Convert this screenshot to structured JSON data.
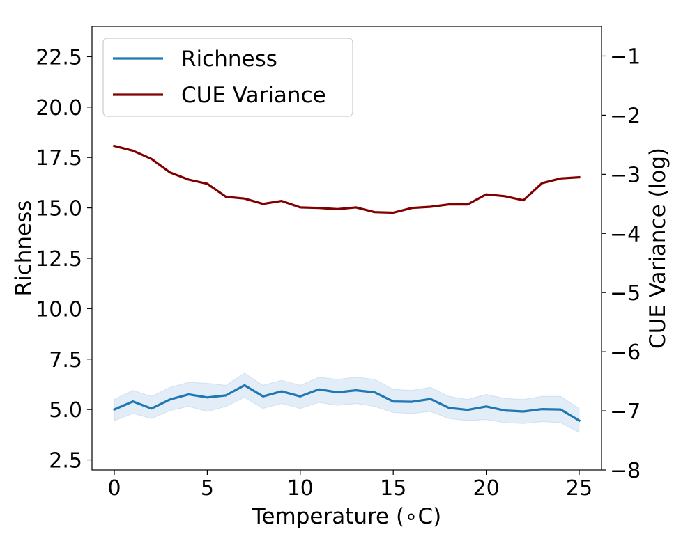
{
  "chart_data": {
    "type": "line",
    "xlabel": "Temperature ($^\\circ$C)",
    "xlabel_display": "Temperature (∘C)",
    "ylabel_left": "Richness",
    "ylabel_right": "CUE Variance (log)",
    "xlim": [
      -1.2,
      26.2
    ],
    "ylim_left": [
      2.0,
      24.0
    ],
    "ylim_right": [
      -8.0,
      -0.5
    ],
    "x_ticks": [
      0,
      5,
      10,
      15,
      20,
      25
    ],
    "y_left_ticks": [
      "2.5",
      "5.0",
      "7.5",
      "10.0",
      "12.5",
      "15.0",
      "17.5",
      "20.0",
      "22.5"
    ],
    "y_left_tick_values": [
      2.5,
      5.0,
      7.5,
      10.0,
      12.5,
      15.0,
      17.5,
      20.0,
      22.5
    ],
    "y_right_ticks": [
      "−1",
      "−2",
      "−3",
      "−4",
      "−5",
      "−6",
      "−7",
      "−8"
    ],
    "y_right_tick_values": [
      -1,
      -2,
      -3,
      -4,
      -5,
      -6,
      -7,
      -8
    ],
    "grid": false,
    "legend_position": "top-left",
    "x": [
      0,
      1,
      2,
      3,
      4,
      5,
      6,
      7,
      8,
      9,
      10,
      11,
      12,
      13,
      14,
      15,
      16,
      17,
      18,
      19,
      20,
      21,
      22,
      23,
      24,
      25
    ],
    "series": [
      {
        "name": "Richness",
        "axis": "left",
        "color": "#1f77b4",
        "values": [
          5.0,
          5.4,
          5.05,
          5.5,
          5.75,
          5.6,
          5.7,
          6.2,
          5.65,
          5.9,
          5.65,
          6.0,
          5.85,
          5.95,
          5.85,
          5.4,
          5.38,
          5.52,
          5.08,
          4.98,
          5.15,
          4.95,
          4.9,
          5.02,
          5.0,
          4.45
        ],
        "band_lower": [
          4.45,
          4.8,
          4.55,
          4.95,
          5.15,
          4.9,
          5.15,
          5.6,
          5.05,
          5.3,
          5.05,
          5.35,
          5.2,
          5.3,
          5.15,
          4.85,
          4.8,
          4.9,
          4.55,
          4.45,
          4.5,
          4.35,
          4.3,
          4.4,
          4.35,
          3.85
        ],
        "band_upper": [
          5.5,
          5.95,
          5.65,
          6.1,
          6.35,
          6.3,
          6.2,
          6.8,
          6.2,
          6.45,
          6.2,
          6.6,
          6.5,
          6.6,
          6.5,
          6.0,
          5.95,
          6.1,
          5.65,
          5.5,
          5.75,
          5.55,
          5.5,
          5.65,
          5.65,
          5.05
        ],
        "band_color": "#c6dbef"
      },
      {
        "name": "CUE Variance",
        "axis": "right",
        "color": "#800000",
        "values": [
          -2.52,
          -2.6,
          -2.74,
          -2.97,
          -3.09,
          -3.16,
          -3.38,
          -3.41,
          -3.5,
          -3.45,
          -3.56,
          -3.57,
          -3.59,
          -3.56,
          -3.64,
          -3.65,
          -3.57,
          -3.55,
          -3.51,
          -3.51,
          -3.34,
          -3.37,
          -3.44,
          -3.15,
          -3.07,
          -3.05
        ]
      }
    ]
  }
}
